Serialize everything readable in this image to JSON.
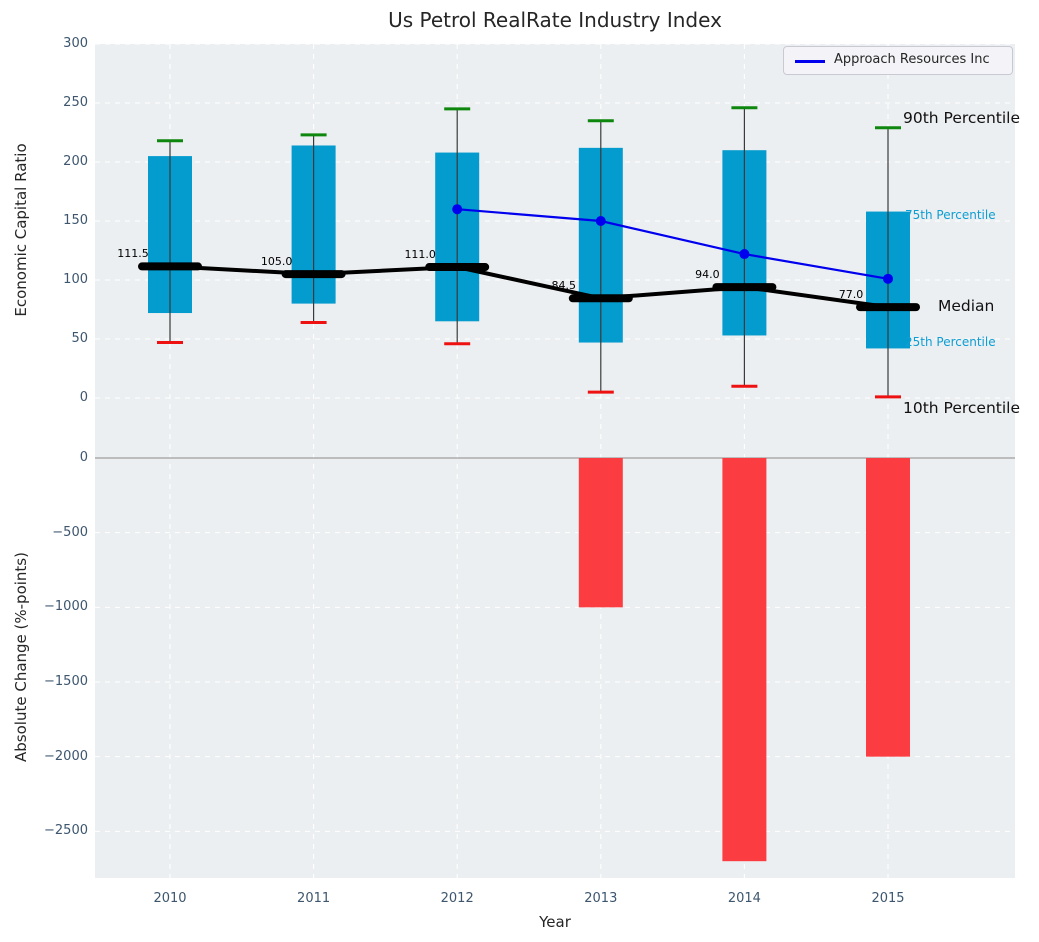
{
  "title": "Us Petrol RealRate Industry Index",
  "legend": {
    "label": "Approach Resources Inc"
  },
  "annotations": {
    "p90": "90th Percentile",
    "p75": "75th Percentile",
    "median": "Median",
    "p25": "25th Percentile",
    "p10": "10th Percentile"
  },
  "colors": {
    "panel": "#eceff1",
    "grid": "#ffffff",
    "box_fill": "#049bce",
    "whisker_line": "#3a3a3a",
    "p90_cap": "#0e870e",
    "p10_cap": "#ee1111",
    "median_line": "#000000",
    "company_line": "#0000ee",
    "bar_fill": "#fb3d41",
    "zero_line": "#ababab",
    "tick_text": "#3d566e",
    "cyan_label": "#0d9ed3"
  },
  "chart_data": [
    {
      "type": "box",
      "ylabel": "Economic Capital Ratio",
      "categories": [
        2010,
        2011,
        2012,
        2013,
        2014,
        2015
      ],
      "yticks": [
        0,
        50,
        100,
        150,
        200,
        250,
        300
      ],
      "ylim": [
        -29,
        300
      ],
      "grid": true,
      "boxes": [
        {
          "year": 2010,
          "p10": 47,
          "p25": 72,
          "median": 111.5,
          "p75": 205,
          "p90": 218,
          "median_label": "111.5"
        },
        {
          "year": 2011,
          "p10": 64,
          "p25": 80,
          "median": 105.0,
          "p75": 214,
          "p90": 223,
          "median_label": "105.0"
        },
        {
          "year": 2012,
          "p10": 46,
          "p25": 65,
          "median": 111.0,
          "p75": 208,
          "p90": 245,
          "median_label": "111.0"
        },
        {
          "year": 2013,
          "p10": 5,
          "p25": 47,
          "median": 84.5,
          "p75": 212,
          "p90": 235,
          "median_label": "84.5"
        },
        {
          "year": 2014,
          "p10": 10,
          "p25": 53,
          "median": 94.0,
          "p75": 210,
          "p90": 246,
          "median_label": "94.0"
        },
        {
          "year": 2015,
          "p10": 1,
          "p25": 42,
          "median": 77.0,
          "p75": 158,
          "p90": 229,
          "median_label": "77.0"
        }
      ],
      "series": [
        {
          "name": "Approach Resources Inc",
          "x": [
            2012,
            2013,
            2014,
            2015
          ],
          "values": [
            160,
            150,
            122,
            101
          ]
        }
      ],
      "legend_position": "upper right"
    },
    {
      "type": "bar",
      "ylabel": "Absolute Change (%-points)",
      "xlabel": "Year",
      "categories": [
        2010,
        2011,
        2012,
        2013,
        2014,
        2015
      ],
      "values": [
        null,
        null,
        null,
        -1000,
        -2700,
        -2000
      ],
      "yticks": [
        0,
        -500,
        -1000,
        -1500,
        -2000,
        -2500
      ],
      "yticklabels": [
        "0",
        "−500",
        "−1000",
        "−1500",
        "−2000",
        "−2500"
      ],
      "ylim": [
        -2815,
        174
      ],
      "grid": true
    }
  ]
}
